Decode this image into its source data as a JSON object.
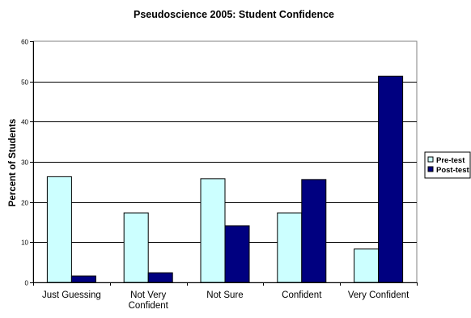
{
  "chart_data": {
    "type": "bar",
    "title": "Pseudoscience 2005: Student Confidence",
    "xlabel": "",
    "ylabel": "Percent of Students",
    "ylim": [
      0,
      60
    ],
    "yticks": [
      0,
      10,
      20,
      30,
      40,
      50,
      60
    ],
    "categories": [
      [
        "Just Guessing"
      ],
      [
        "Not Very",
        "Confident"
      ],
      [
        "Not Sure"
      ],
      [
        "Confident"
      ],
      [
        "Very Confident"
      ]
    ],
    "series": [
      {
        "name": "Pre-test",
        "values": [
          26.3,
          17.3,
          25.8,
          17.3,
          8.3
        ],
        "color": "#ccffff"
      },
      {
        "name": "Post-test",
        "values": [
          1.6,
          2.4,
          14.1,
          25.6,
          51.3
        ],
        "color": "#000080"
      }
    ],
    "grid": true,
    "legend_position": "right"
  }
}
